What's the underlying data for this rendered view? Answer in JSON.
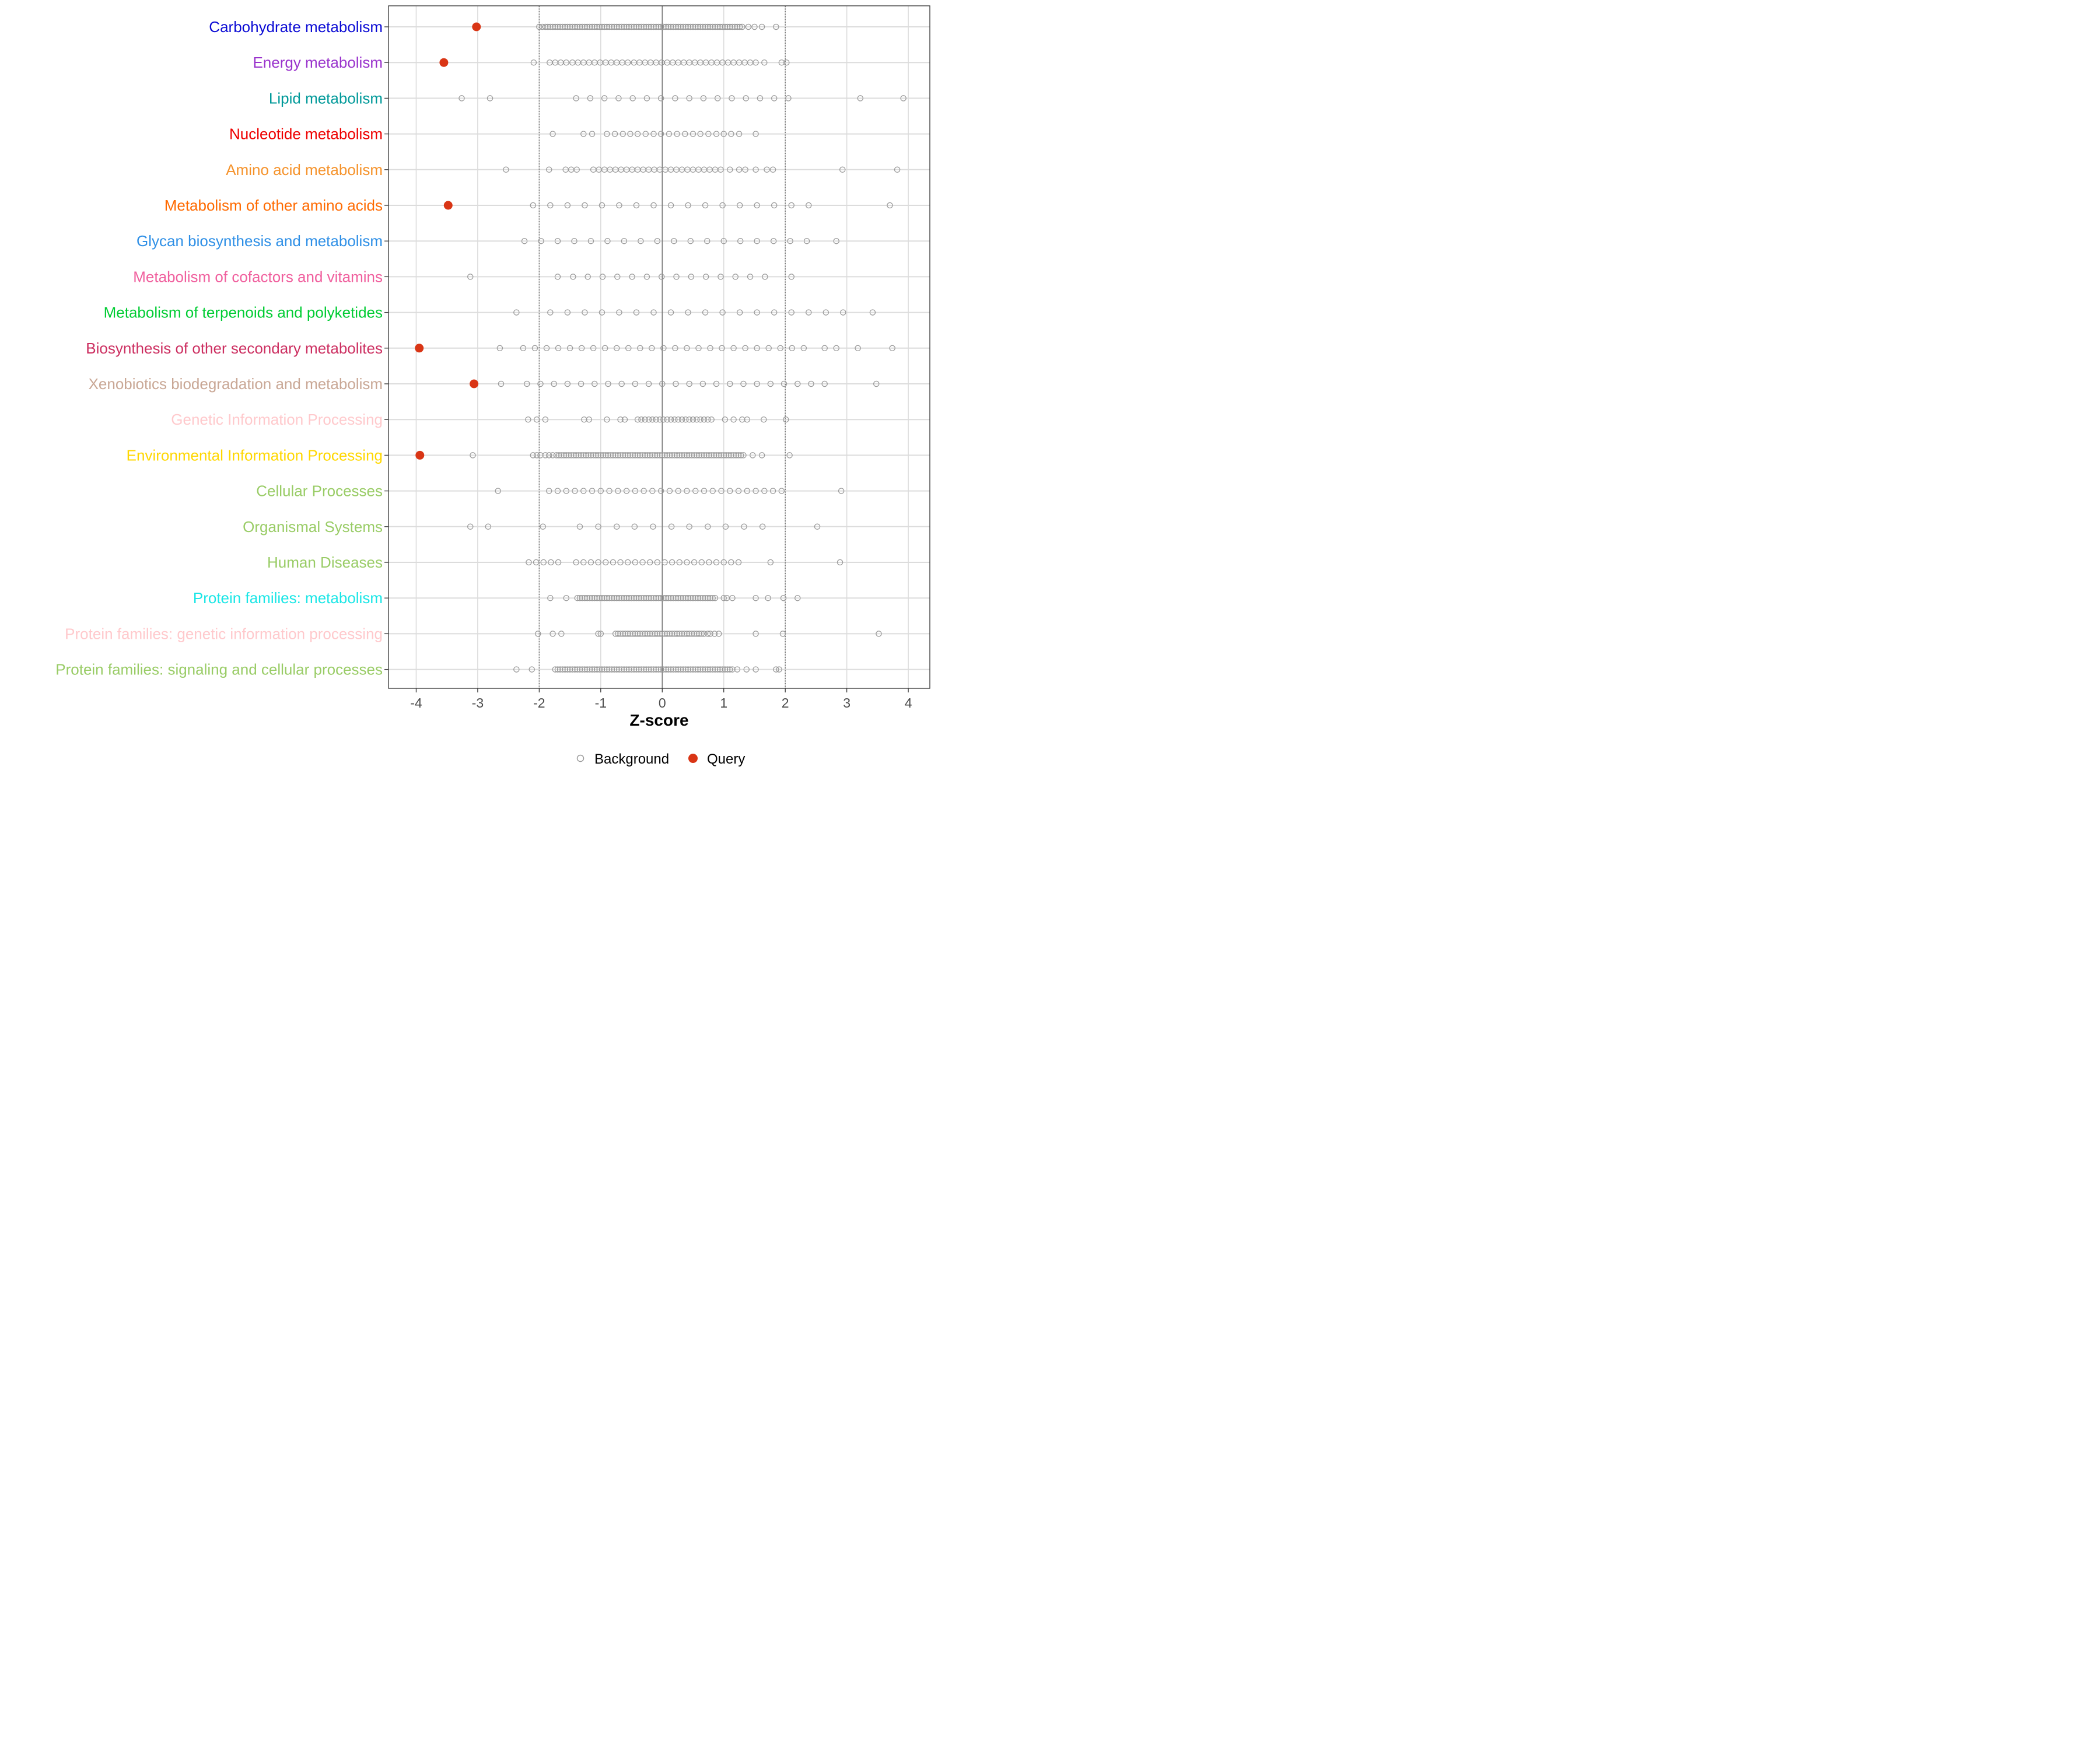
{
  "chart_data": {
    "type": "scatter",
    "xlabel": "Z-score",
    "xlim": [
      -4.45,
      4.35
    ],
    "xticks": [
      -4,
      -3,
      -2,
      -1,
      0,
      1,
      2,
      3,
      4
    ],
    "xtick_labels": [
      "-4",
      "-3",
      "-2",
      "-1",
      "0",
      "1",
      "2",
      "3",
      "4"
    ],
    "reference_lines": {
      "solid": 0,
      "dotted": [
        -2,
        2
      ]
    },
    "legend": {
      "placement": "bottom",
      "items": [
        {
          "name": "Background",
          "style": "open-circle",
          "color": "#999999"
        },
        {
          "name": "Query",
          "style": "filled-circle",
          "color": "#d93515"
        }
      ]
    },
    "categories": [
      {
        "label": "Carbohydrate metabolism",
        "color": "#0a0ad4",
        "query": -3.02,
        "background": [
          -2.0,
          -1.95,
          -1.9,
          -1.86,
          -1.82,
          -1.78,
          -1.74,
          -1.7,
          -1.66,
          -1.62,
          -1.58,
          -1.54,
          -1.5,
          -1.46,
          -1.42,
          -1.38,
          -1.34,
          -1.3,
          -1.26,
          -1.22,
          -1.18,
          -1.14,
          -1.1,
          -1.06,
          -1.02,
          -0.98,
          -0.94,
          -0.9,
          -0.86,
          -0.82,
          -0.78,
          -0.74,
          -0.7,
          -0.66,
          -0.62,
          -0.58,
          -0.54,
          -0.5,
          -0.46,
          -0.42,
          -0.38,
          -0.34,
          -0.3,
          -0.26,
          -0.22,
          -0.18,
          -0.14,
          -0.1,
          -0.06,
          -0.02,
          0.02,
          0.06,
          0.1,
          0.14,
          0.18,
          0.22,
          0.26,
          0.3,
          0.34,
          0.38,
          0.42,
          0.46,
          0.5,
          0.54,
          0.58,
          0.62,
          0.66,
          0.7,
          0.74,
          0.78,
          0.82,
          0.86,
          0.9,
          0.94,
          0.98,
          1.02,
          1.06,
          1.1,
          1.14,
          1.18,
          1.22,
          1.26,
          1.3,
          1.4,
          1.5,
          1.62,
          1.85
        ]
      },
      {
        "label": "Energy metabolism",
        "color": "#9932cc",
        "query": -3.55,
        "background": [
          -2.09,
          -1.83,
          -1.74,
          -1.65,
          -1.56,
          -1.46,
          -1.37,
          -1.28,
          -1.19,
          -1.1,
          -1.01,
          -0.92,
          -0.83,
          -0.74,
          -0.65,
          -0.56,
          -0.46,
          -0.37,
          -0.28,
          -0.19,
          -0.1,
          -0.01,
          0.08,
          0.17,
          0.26,
          0.35,
          0.44,
          0.53,
          0.62,
          0.71,
          0.8,
          0.89,
          0.98,
          1.07,
          1.16,
          1.25,
          1.34,
          1.43,
          1.52,
          1.66,
          1.94,
          2.02
        ]
      },
      {
        "label": "Lipid metabolism",
        "color": "#009999",
        "query": null,
        "background": [
          -3.26,
          -2.8,
          -1.4,
          -1.17,
          -0.94,
          -0.71,
          -0.48,
          -0.25,
          -0.02,
          0.21,
          0.44,
          0.67,
          0.9,
          1.13,
          1.36,
          1.59,
          1.82,
          2.05,
          3.22,
          3.92
        ]
      },
      {
        "label": "Nucleotide metabolism",
        "color": "#ee0000",
        "query": null,
        "background": [
          -1.78,
          -1.28,
          -1.14,
          -0.9,
          -0.77,
          -0.64,
          -0.52,
          -0.4,
          -0.27,
          -0.14,
          -0.02,
          0.11,
          0.24,
          0.37,
          0.5,
          0.62,
          0.75,
          0.88,
          1.0,
          1.12,
          1.25,
          1.52
        ]
      },
      {
        "label": "Amino acid metabolism",
        "color": "#f5922a",
        "query": null,
        "background": [
          -2.54,
          -1.84,
          -1.57,
          -1.48,
          -1.39,
          -1.12,
          -1.03,
          -0.94,
          -0.85,
          -0.76,
          -0.67,
          -0.58,
          -0.49,
          -0.4,
          -0.31,
          -0.22,
          -0.13,
          -0.04,
          0.05,
          0.14,
          0.23,
          0.32,
          0.41,
          0.5,
          0.59,
          0.68,
          0.77,
          0.86,
          0.95,
          1.1,
          1.25,
          1.35,
          1.52,
          1.7,
          1.8,
          2.93,
          3.82
        ]
      },
      {
        "label": "Metabolism of other amino acids",
        "color": "#ff6a00",
        "query": -3.48,
        "background": [
          -2.1,
          -1.82,
          -1.54,
          -1.26,
          -0.98,
          -0.7,
          -0.42,
          -0.14,
          0.14,
          0.42,
          0.7,
          0.98,
          1.26,
          1.54,
          1.82,
          2.1,
          2.38,
          3.7
        ]
      },
      {
        "label": "Glycan biosynthesis and metabolism",
        "color": "#2e8fe6",
        "query": null,
        "background": [
          -2.24,
          -1.97,
          -1.7,
          -1.43,
          -1.16,
          -0.89,
          -0.62,
          -0.35,
          -0.08,
          0.19,
          0.46,
          0.73,
          1.0,
          1.27,
          1.54,
          1.81,
          2.08,
          2.35,
          2.83
        ]
      },
      {
        "label": "Metabolism of cofactors and vitamins",
        "color": "#f0609e",
        "query": null,
        "background": [
          -3.12,
          -1.7,
          -1.45,
          -1.21,
          -0.97,
          -0.73,
          -0.49,
          -0.25,
          -0.01,
          0.23,
          0.47,
          0.71,
          0.95,
          1.19,
          1.43,
          1.67,
          2.1
        ]
      },
      {
        "label": "Metabolism of terpenoids and polyketides",
        "color": "#00cc33",
        "query": null,
        "background": [
          -2.37,
          -1.82,
          -1.54,
          -1.26,
          -0.98,
          -0.7,
          -0.42,
          -0.14,
          0.14,
          0.42,
          0.7,
          0.98,
          1.26,
          1.54,
          1.82,
          2.1,
          2.38,
          2.66,
          2.94,
          3.42
        ]
      },
      {
        "label": "Biosynthesis of other secondary metabolites",
        "color": "#cc2e60",
        "query": -3.95,
        "background": [
          -2.64,
          -2.26,
          -2.07,
          -1.88,
          -1.69,
          -1.5,
          -1.31,
          -1.12,
          -0.93,
          -0.74,
          -0.55,
          -0.36,
          -0.17,
          0.02,
          0.21,
          0.4,
          0.59,
          0.78,
          0.97,
          1.16,
          1.35,
          1.54,
          1.73,
          1.92,
          2.11,
          2.3,
          2.64,
          2.83,
          3.18,
          3.74
        ]
      },
      {
        "label": "Xenobiotics biodegradation and metabolism",
        "color": "#c9a795",
        "query": -3.06,
        "background": [
          -2.62,
          -2.2,
          -1.98,
          -1.76,
          -1.54,
          -1.32,
          -1.1,
          -0.88,
          -0.66,
          -0.44,
          -0.22,
          0.0,
          0.22,
          0.44,
          0.66,
          0.88,
          1.1,
          1.32,
          1.54,
          1.76,
          1.98,
          2.2,
          2.42,
          2.64,
          3.48
        ]
      },
      {
        "label": "Genetic Information Processing",
        "color": "#ffc9cc",
        "query": null,
        "background": [
          -2.18,
          -2.04,
          -1.9,
          -1.27,
          -1.19,
          -0.9,
          -0.68,
          -0.61,
          -0.4,
          -0.34,
          -0.28,
          -0.22,
          -0.16,
          -0.1,
          -0.04,
          0.02,
          0.08,
          0.14,
          0.2,
          0.26,
          0.32,
          0.38,
          0.44,
          0.5,
          0.56,
          0.62,
          0.68,
          0.74,
          0.8,
          1.02,
          1.16,
          1.3,
          1.38,
          1.65,
          2.01
        ]
      },
      {
        "label": "Environmental Information Processing",
        "color": "#ffd700",
        "query": -3.94,
        "background": [
          -3.08,
          -2.1,
          -2.04,
          -1.98,
          -1.9,
          -1.84,
          -1.78,
          -1.72,
          -1.68,
          -1.64,
          -1.6,
          -1.56,
          -1.52,
          -1.48,
          -1.44,
          -1.4,
          -1.36,
          -1.32,
          -1.28,
          -1.24,
          -1.2,
          -1.16,
          -1.12,
          -1.08,
          -1.04,
          -1.0,
          -0.96,
          -0.92,
          -0.88,
          -0.84,
          -0.8,
          -0.76,
          -0.72,
          -0.68,
          -0.64,
          -0.6,
          -0.56,
          -0.52,
          -0.48,
          -0.44,
          -0.4,
          -0.36,
          -0.32,
          -0.28,
          -0.24,
          -0.2,
          -0.16,
          -0.12,
          -0.08,
          -0.04,
          0.0,
          0.04,
          0.08,
          0.12,
          0.16,
          0.2,
          0.24,
          0.28,
          0.32,
          0.36,
          0.4,
          0.44,
          0.48,
          0.52,
          0.56,
          0.6,
          0.64,
          0.68,
          0.72,
          0.76,
          0.8,
          0.84,
          0.88,
          0.92,
          0.96,
          1.0,
          1.04,
          1.08,
          1.12,
          1.16,
          1.2,
          1.24,
          1.28,
          1.32,
          1.47,
          1.62,
          2.07
        ]
      },
      {
        "label": "Cellular Processes",
        "color": "#99cc66",
        "query": null,
        "background": [
          -2.67,
          -1.84,
          -1.7,
          -1.56,
          -1.42,
          -1.28,
          -1.14,
          -1.0,
          -0.86,
          -0.72,
          -0.58,
          -0.44,
          -0.3,
          -0.16,
          -0.02,
          0.12,
          0.26,
          0.4,
          0.54,
          0.68,
          0.82,
          0.96,
          1.1,
          1.24,
          1.38,
          1.52,
          1.66,
          1.8,
          1.94,
          2.91
        ]
      },
      {
        "label": "Organismal Systems",
        "color": "#99cc66",
        "query": null,
        "background": [
          -3.12,
          -2.83,
          -1.94,
          -1.34,
          -1.04,
          -0.74,
          -0.45,
          -0.15,
          0.15,
          0.44,
          0.74,
          1.03,
          1.33,
          1.63,
          2.52
        ]
      },
      {
        "label": "Human Diseases",
        "color": "#99cc66",
        "query": null,
        "background": [
          -2.17,
          -2.05,
          -1.93,
          -1.81,
          -1.69,
          -1.4,
          -1.28,
          -1.16,
          -1.04,
          -0.92,
          -0.8,
          -0.68,
          -0.56,
          -0.44,
          -0.32,
          -0.2,
          -0.08,
          0.04,
          0.16,
          0.28,
          0.4,
          0.52,
          0.64,
          0.76,
          0.88,
          1.0,
          1.12,
          1.24,
          1.76,
          2.89
        ]
      },
      {
        "label": "Protein families: metabolism",
        "color": "#1ae6e6",
        "query": null,
        "background": [
          -1.82,
          -1.56,
          -1.38,
          -1.34,
          -1.3,
          -1.26,
          -1.22,
          -1.18,
          -1.14,
          -1.1,
          -1.06,
          -1.02,
          -0.98,
          -0.94,
          -0.9,
          -0.86,
          -0.82,
          -0.78,
          -0.74,
          -0.7,
          -0.66,
          -0.62,
          -0.58,
          -0.54,
          -0.5,
          -0.46,
          -0.42,
          -0.38,
          -0.34,
          -0.3,
          -0.26,
          -0.22,
          -0.18,
          -0.14,
          -0.1,
          -0.06,
          -0.02,
          0.02,
          0.06,
          0.1,
          0.14,
          0.18,
          0.22,
          0.26,
          0.3,
          0.34,
          0.38,
          0.42,
          0.46,
          0.5,
          0.54,
          0.58,
          0.62,
          0.66,
          0.7,
          0.74,
          0.78,
          0.82,
          0.86,
          1.0,
          1.05,
          1.14,
          1.52,
          1.72,
          1.97,
          2.2
        ]
      },
      {
        "label": "Protein families: genetic information processing",
        "color": "#ffc9cc",
        "query": null,
        "background": [
          -2.02,
          -1.78,
          -1.64,
          -1.04,
          -1.0,
          -0.76,
          -0.72,
          -0.68,
          -0.64,
          -0.6,
          -0.56,
          -0.52,
          -0.48,
          -0.44,
          -0.4,
          -0.36,
          -0.32,
          -0.28,
          -0.24,
          -0.2,
          -0.16,
          -0.12,
          -0.08,
          -0.04,
          0.0,
          0.04,
          0.08,
          0.12,
          0.16,
          0.2,
          0.24,
          0.28,
          0.32,
          0.36,
          0.4,
          0.44,
          0.48,
          0.52,
          0.56,
          0.6,
          0.64,
          0.68,
          0.74,
          0.78,
          0.85,
          0.92,
          1.52,
          1.96,
          3.52
        ]
      },
      {
        "label": "Protein families: signaling and cellular processes",
        "color": "#99cc66",
        "query": null,
        "background": [
          -2.37,
          -2.12,
          -1.74,
          -1.7,
          -1.66,
          -1.62,
          -1.58,
          -1.54,
          -1.5,
          -1.46,
          -1.42,
          -1.38,
          -1.34,
          -1.3,
          -1.26,
          -1.22,
          -1.18,
          -1.14,
          -1.1,
          -1.06,
          -1.02,
          -0.98,
          -0.94,
          -0.9,
          -0.86,
          -0.82,
          -0.78,
          -0.74,
          -0.7,
          -0.66,
          -0.62,
          -0.58,
          -0.54,
          -0.5,
          -0.46,
          -0.42,
          -0.38,
          -0.34,
          -0.3,
          -0.26,
          -0.22,
          -0.18,
          -0.14,
          -0.1,
          -0.06,
          -0.02,
          0.02,
          0.06,
          0.1,
          0.14,
          0.18,
          0.22,
          0.26,
          0.3,
          0.34,
          0.38,
          0.42,
          0.46,
          0.5,
          0.54,
          0.58,
          0.62,
          0.66,
          0.7,
          0.74,
          0.78,
          0.82,
          0.86,
          0.9,
          0.94,
          0.98,
          1.02,
          1.06,
          1.1,
          1.14,
          1.22,
          1.37,
          1.52,
          1.85,
          1.9
        ]
      }
    ]
  }
}
